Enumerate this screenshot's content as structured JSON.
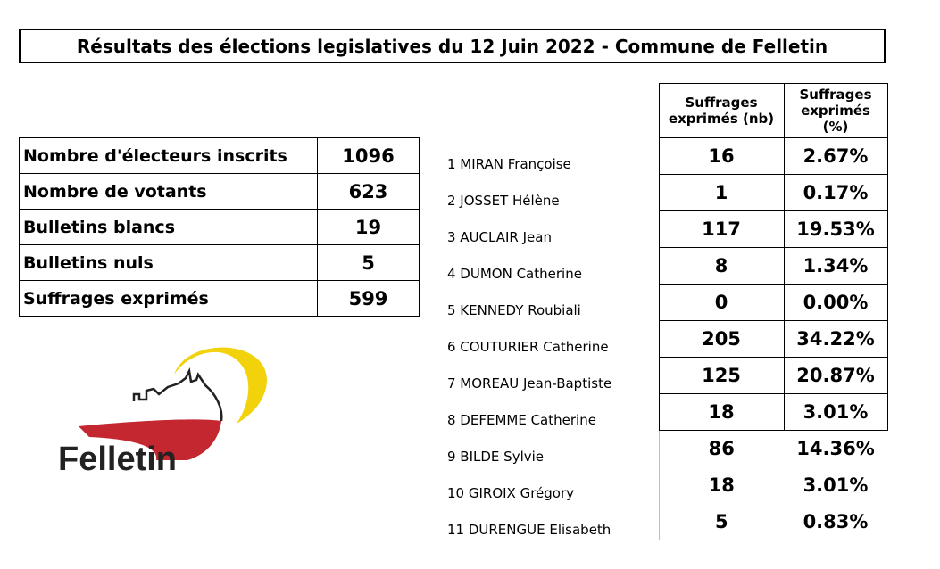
{
  "title": "Résultats des élections legislatives du 12 Juin 2022 - Commune de Felletin",
  "summary": [
    {
      "label": "Nombre d'électeurs inscrits",
      "value": "1096"
    },
    {
      "label": "Nombre de votants",
      "value": "623"
    },
    {
      "label": "Bulletins blancs",
      "value": "19"
    },
    {
      "label": "Bulletins nuls",
      "value": "5"
    },
    {
      "label": "Suffrages exprimés",
      "value": "599"
    }
  ],
  "headers": {
    "nb_line1": "Suffrages",
    "nb_line2": "exprimés (nb)",
    "pct_line1": "Suffrages",
    "pct_line2": "exprimés",
    "pct_line3": "(%)"
  },
  "candidates": [
    {
      "name": "1 MIRAN Françoise",
      "nb": "16",
      "pct": "2.67%"
    },
    {
      "name": "2 JOSSET Hélène",
      "nb": "1",
      "pct": "0.17%"
    },
    {
      "name": "3 AUCLAIR Jean",
      "nb": "117",
      "pct": "19.53%"
    },
    {
      "name": "4 DUMON Catherine",
      "nb": "8",
      "pct": "1.34%"
    },
    {
      "name": "5 KENNEDY Roubiali",
      "nb": "0",
      "pct": "0.00%"
    },
    {
      "name": "6 COUTURIER Catherine",
      "nb": "205",
      "pct": "34.22%"
    },
    {
      "name": "7 MOREAU Jean-Baptiste",
      "nb": "125",
      "pct": "20.87%"
    },
    {
      "name": "8 DEFEMME Catherine",
      "nb": "18",
      "pct": "3.01%"
    },
    {
      "name": "9 BILDE Sylvie",
      "nb": "86",
      "pct": "14.36%"
    },
    {
      "name": "10 GIROIX Grégory",
      "nb": "18",
      "pct": "3.01%"
    },
    {
      "name": "11 DURENGUE Elisabeth",
      "nb": "5",
      "pct": "0.83%"
    }
  ],
  "logo": {
    "text": "Felletin",
    "colors": {
      "sun": "#f2d20a",
      "red": "#c4272f",
      "dark": "#222222"
    }
  }
}
